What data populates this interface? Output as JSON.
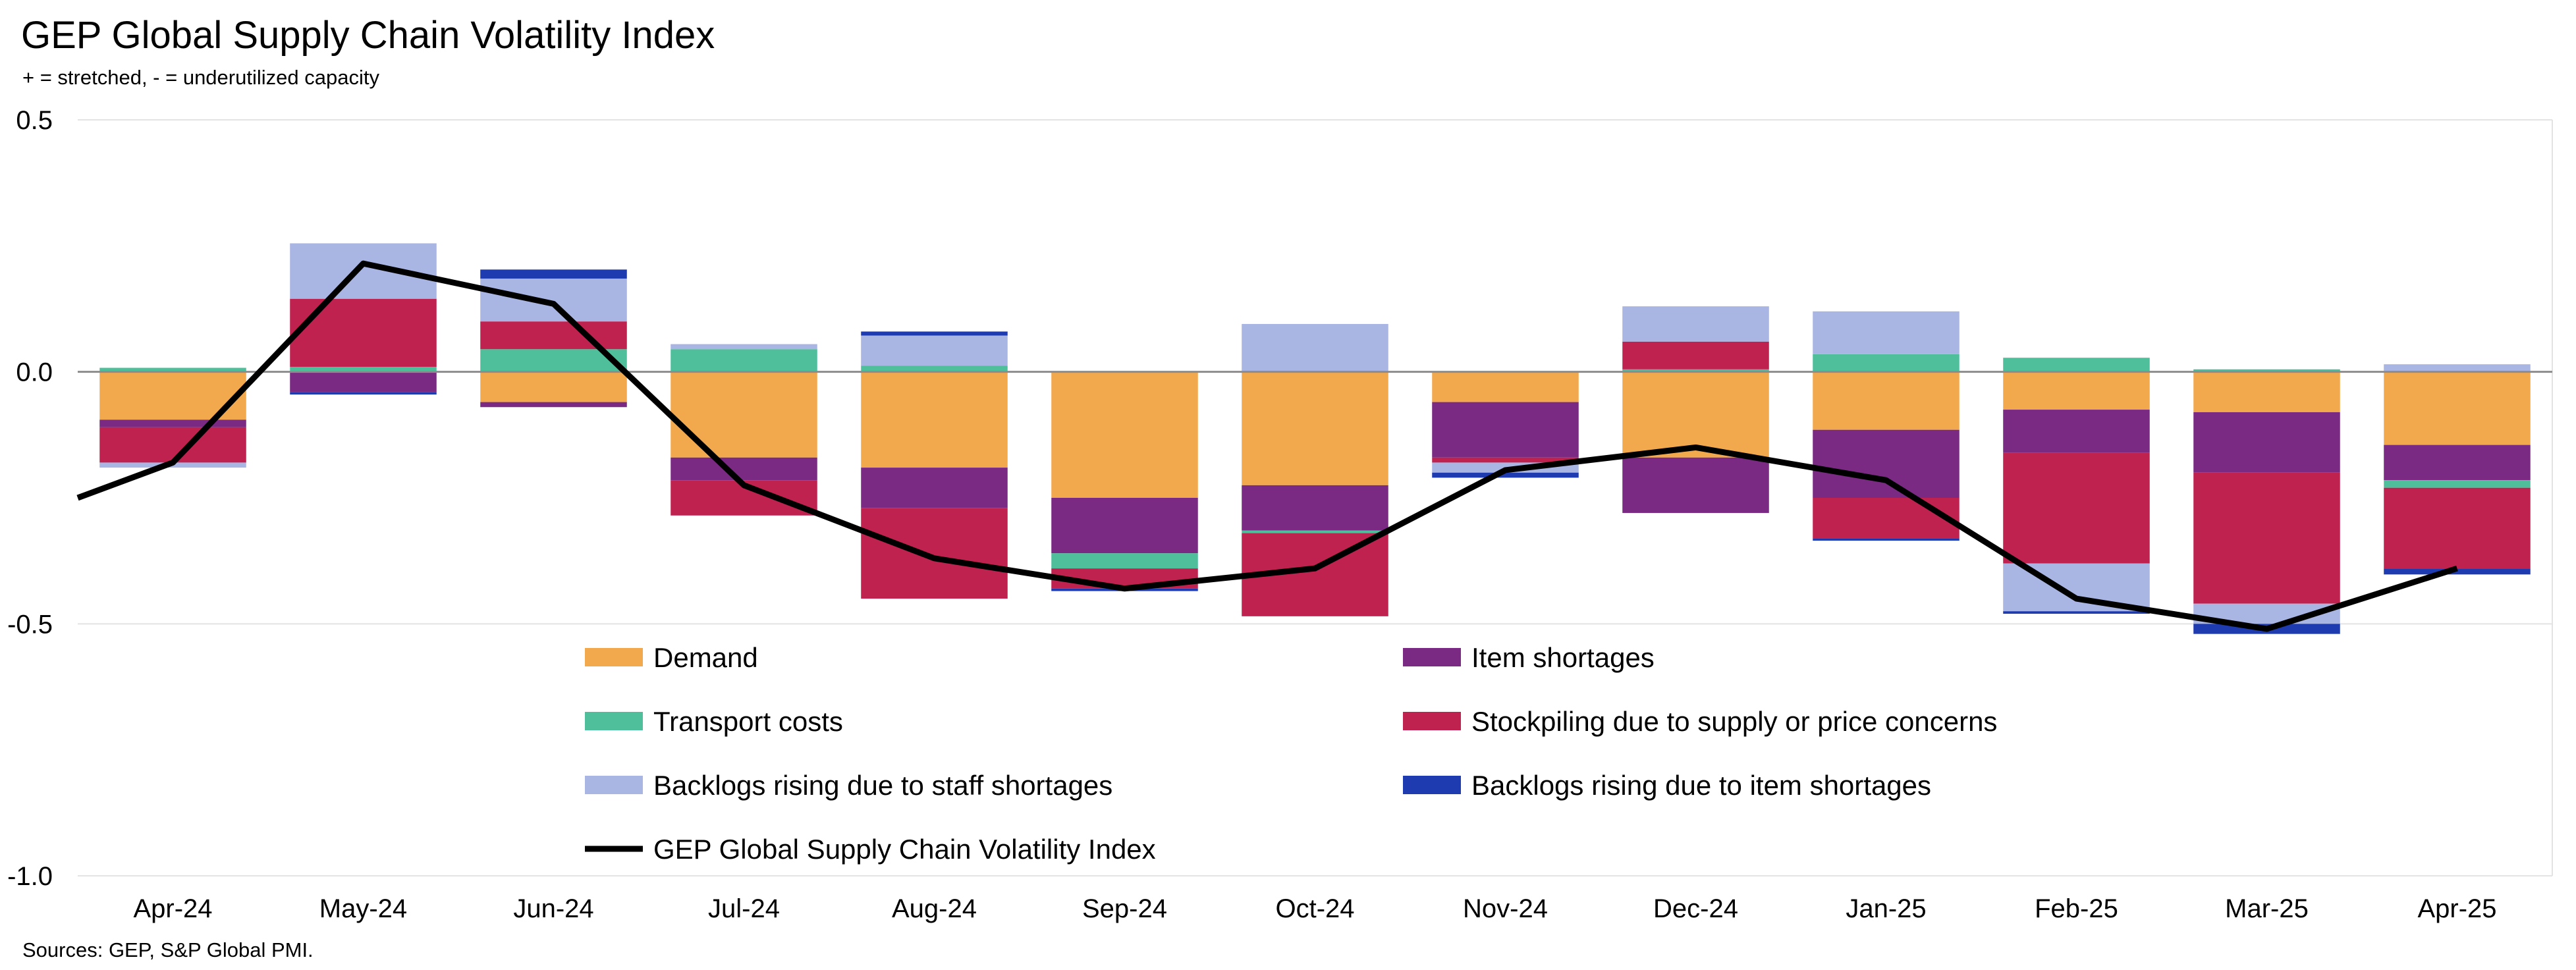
{
  "chart_data": {
    "type": "bar",
    "stacked": true,
    "title": "GEP Global Supply Chain Volatility Index",
    "subtitle": "+ = stretched, - = underutilized capacity",
    "source": "Sources: GEP, S&P Global PMI.",
    "categories": [
      "Apr-24",
      "May-24",
      "Jun-24",
      "Jul-24",
      "Aug-24",
      "Sep-24",
      "Oct-24",
      "Nov-24",
      "Dec-24",
      "Jan-25",
      "Feb-25",
      "Mar-25",
      "Apr-25"
    ],
    "ylim": [
      -1.0,
      0.5
    ],
    "yticks": [
      0.5,
      0.0,
      -0.5,
      -1.0
    ],
    "ytick_labels": [
      "0.5",
      "0.0",
      "-0.5",
      "-1.0"
    ],
    "grid": true,
    "legend_position": "bottom-center",
    "series": [
      {
        "name": "Demand",
        "color": "#F2A94E",
        "values": [
          -0.095,
          0.0,
          -0.06,
          -0.17,
          -0.19,
          -0.25,
          -0.225,
          -0.06,
          -0.17,
          -0.115,
          -0.075,
          -0.08,
          -0.145
        ]
      },
      {
        "name": "Item shortages",
        "color": "#7B2A84",
        "values": [
          -0.015,
          -0.04,
          -0.01,
          -0.045,
          -0.08,
          -0.11,
          -0.09,
          -0.11,
          -0.11,
          -0.135,
          -0.085,
          -0.12,
          -0.07
        ]
      },
      {
        "name": "Transport costs",
        "color": "#4EBF9A",
        "values": [
          0.008,
          0.01,
          0.045,
          0.045,
          0.012,
          -0.03,
          -0.005,
          0.0,
          0.005,
          0.035,
          0.028,
          0.005,
          -0.015
        ]
      },
      {
        "name": "Stockpiling due to supply or price concerns",
        "color": "#C0224F",
        "values": [
          -0.07,
          0.135,
          0.055,
          -0.07,
          -0.18,
          -0.04,
          -0.165,
          -0.01,
          0.055,
          -0.08,
          -0.22,
          -0.26,
          -0.16
        ]
      },
      {
        "name": "Backlogs rising due to staff shortages",
        "color": "#A9B5E3",
        "values": [
          -0.01,
          0.11,
          0.085,
          0.01,
          0.06,
          0.0,
          0.095,
          -0.02,
          0.07,
          0.085,
          -0.095,
          -0.04,
          0.015
        ]
      },
      {
        "name": "Backlogs rising due to item shortages",
        "color": "#1F3BB0",
        "values": [
          0.0,
          -0.005,
          0.018,
          0.0,
          0.008,
          -0.005,
          0.0,
          -0.01,
          0.0,
          -0.005,
          -0.005,
          -0.02,
          -0.012
        ]
      }
    ],
    "line_series": {
      "name": "GEP Global Supply Chain Volatility Index",
      "color": "#000000",
      "x_start_value": -0.25,
      "values": [
        -0.18,
        0.215,
        0.135,
        -0.225,
        -0.37,
        -0.43,
        -0.39,
        -0.195,
        -0.15,
        -0.215,
        -0.45,
        -0.51,
        -0.39
      ]
    }
  },
  "legend": {
    "items": [
      {
        "label": "Demand",
        "color": "#F2A94E",
        "kind": "box"
      },
      {
        "label": "Item shortages",
        "color": "#7B2A84",
        "kind": "box"
      },
      {
        "label": "Transport costs",
        "color": "#4EBF9A",
        "kind": "box"
      },
      {
        "label": "Stockpiling due to supply or price concerns",
        "color": "#C0224F",
        "kind": "box"
      },
      {
        "label": "Backlogs rising due to staff shortages",
        "color": "#A9B5E3",
        "kind": "box"
      },
      {
        "label": "Backlogs rising due to item shortages",
        "color": "#1F3BB0",
        "kind": "box"
      },
      {
        "label": "GEP Global Supply Chain Volatility Index",
        "color": "#000000",
        "kind": "line"
      }
    ]
  }
}
